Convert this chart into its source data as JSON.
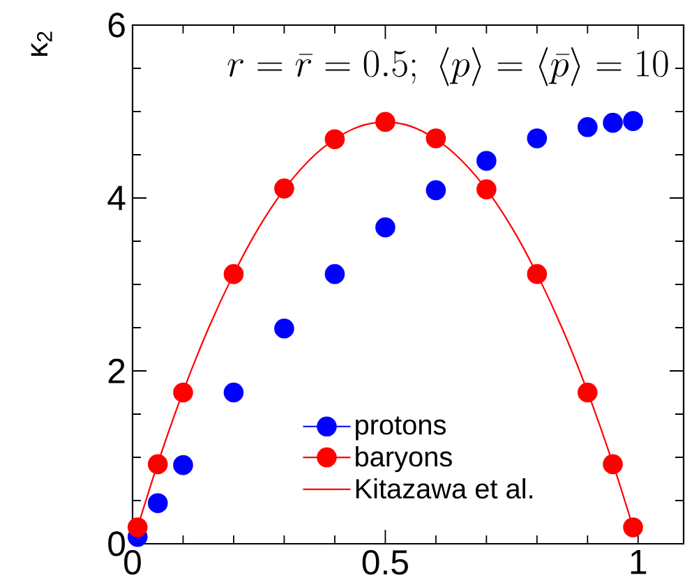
{
  "chart_data": {
    "type": "scatter",
    "ylabel": "κ$_{2}$",
    "annotations": [
      "r = \\bar{r} = 0.5;\\ \\langle p\\rangle = \\langle \\bar{p}\\rangle = 10"
    ],
    "xlim": [
      0,
      1.09
    ],
    "ylim": [
      0,
      6
    ],
    "xticks": [
      0,
      {
        "value": 0.1,
        "label": null
      },
      {
        "value": 0.2,
        "label": null
      },
      {
        "value": 0.3,
        "label": null
      },
      {
        "value": 0.4,
        "label": null
      },
      0.5,
      {
        "value": 0.6,
        "label": null
      },
      {
        "value": 0.7,
        "label": null
      },
      {
        "value": 0.8,
        "label": null
      },
      {
        "value": 0.9,
        "label": null
      },
      1
    ],
    "yticks": [
      0,
      {
        "value": 0.5,
        "label": null
      },
      {
        "value": 1,
        "label": null
      },
      {
        "value": 1.5,
        "label": null
      },
      2,
      {
        "value": 2.5,
        "label": null
      },
      {
        "value": 3,
        "label": null
      },
      {
        "value": 3.5,
        "label": null
      },
      4,
      {
        "value": 4.5,
        "label": null
      },
      {
        "value": 5,
        "label": null
      },
      {
        "value": 5.5,
        "label": null
      },
      6
    ],
    "marker": "circle",
    "legend": "bottom",
    "series": [
      {
        "name": "protons",
        "color": "#0000ff",
        "x": [
          0.01,
          0.05,
          0.1,
          0.2,
          0.3,
          0.4,
          0.5,
          0.6,
          0.7,
          0.8,
          0.9,
          0.95,
          0.99
        ],
        "values": [
          0.08,
          0.47,
          0.91,
          1.75,
          2.49,
          3.12,
          3.66,
          4.09,
          4.43,
          4.69,
          4.82,
          4.87,
          4.89
        ]
      },
      {
        "name": "baryons",
        "color": "#ff0000",
        "x": [
          0.01,
          0.05,
          0.1,
          0.2,
          0.3,
          0.4,
          0.5,
          0.6,
          0.7,
          0.8,
          0.9,
          0.95,
          0.99
        ],
        "values": [
          0.19,
          0.92,
          1.75,
          3.12,
          4.11,
          4.68,
          4.88,
          4.69,
          4.1,
          3.12,
          1.75,
          0.92,
          0.19
        ]
      },
      {
        "name": "Kitazawa et al.",
        "type": "line",
        "marker": "none",
        "color": "#ff0000",
        "x": [
          0.01,
          0.05,
          0.1,
          0.15,
          0.2,
          0.25,
          0.3,
          0.35,
          0.4,
          0.45,
          0.5,
          0.55,
          0.6,
          0.65,
          0.7,
          0.75,
          0.8,
          0.85,
          0.9,
          0.95,
          0.99
        ],
        "values": [
          0.19,
          0.93,
          1.76,
          2.49,
          3.12,
          3.66,
          4.1,
          4.44,
          4.68,
          4.83,
          4.88,
          4.83,
          4.68,
          4.44,
          4.1,
          3.66,
          3.12,
          2.49,
          1.76,
          0.93,
          0.19
        ]
      }
    ]
  }
}
